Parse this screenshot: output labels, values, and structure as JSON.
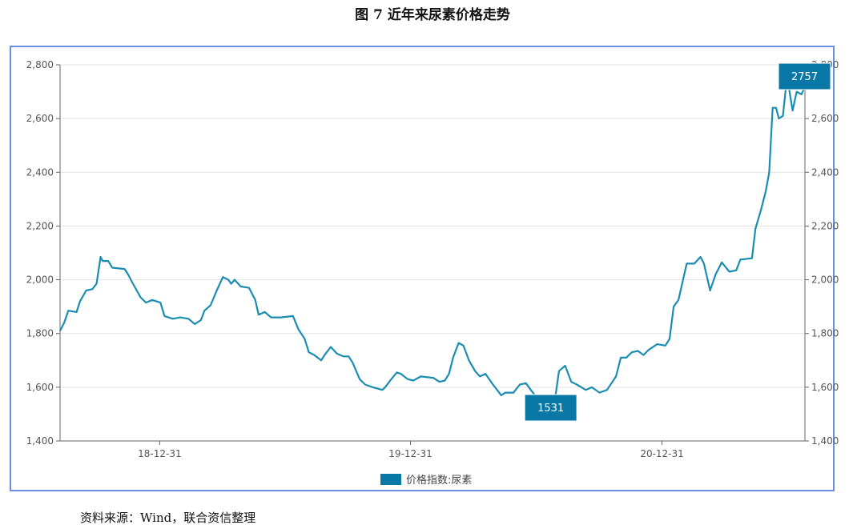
{
  "title": "图 7  近年来尿素价格走势",
  "source": "资料来源：Wind，联合资信整理",
  "chart_data": {
    "type": "line",
    "title": "图 7  近年来尿素价格走势",
    "xlabel": "",
    "ylabel": "",
    "ylim": [
      1400,
      2800
    ],
    "yticks": [
      "1,400",
      "1,600",
      "1,800",
      "2,000",
      "2,200",
      "2,400",
      "2,600",
      "2,800"
    ],
    "ytick_values": [
      1400,
      1600,
      1800,
      2000,
      2200,
      2400,
      2600,
      2800
    ],
    "xlim": [
      "2018-08-08",
      "2021-07-27"
    ],
    "xticks": [
      {
        "label": "18-12-31",
        "date": "2018-12-31"
      },
      {
        "label": "19-12-31",
        "date": "2019-12-31"
      },
      {
        "label": "20-12-31",
        "date": "2020-12-31"
      }
    ],
    "grid": true,
    "dual_y_axis": true,
    "legend_position": "bottom",
    "colors": {
      "line": "#1b8db0",
      "label_box": "#0a78a6",
      "frame": "#6a8fe0"
    },
    "annotations": [
      {
        "text": "1531",
        "date": "2020-07-11",
        "value": 1531,
        "type": "min"
      },
      {
        "text": "2757",
        "date": "2021-07-01",
        "value": 2757,
        "type": "max"
      }
    ],
    "series": [
      {
        "name": "价格指数:尿素",
        "x": [
          "2018-08-08",
          "2018-08-14",
          "2018-08-20",
          "2018-09-01",
          "2018-09-06",
          "2018-09-15",
          "2018-09-24",
          "2018-09-30",
          "2018-10-06",
          "2018-10-09",
          "2018-10-17",
          "2018-10-23",
          "2018-11-10",
          "2018-11-15",
          "2018-11-21",
          "2018-12-03",
          "2018-12-11",
          "2018-12-20",
          "2019-01-01",
          "2019-01-07",
          "2019-01-19",
          "2019-01-30",
          "2019-02-11",
          "2019-02-20",
          "2019-03-01",
          "2019-03-06",
          "2019-03-15",
          "2019-03-24",
          "2019-04-02",
          "2019-04-10",
          "2019-04-14",
          "2019-04-19",
          "2019-04-28",
          "2019-05-10",
          "2019-05-19",
          "2019-05-24",
          "2019-06-02",
          "2019-06-11",
          "2019-06-25",
          "2019-07-13",
          "2019-07-21",
          "2019-07-30",
          "2019-08-05",
          "2019-08-13",
          "2019-08-23",
          "2019-08-28",
          "2019-09-06",
          "2019-09-15",
          "2019-09-24",
          "2019-10-02",
          "2019-10-08",
          "2019-10-18",
          "2019-10-26",
          "2019-11-06",
          "2019-11-20",
          "2019-11-24",
          "2019-12-03",
          "2019-12-11",
          "2019-12-17",
          "2019-12-27",
          "2020-01-04",
          "2020-01-15",
          "2020-02-02",
          "2020-02-11",
          "2020-02-19",
          "2020-02-25",
          "2020-03-02",
          "2020-03-10",
          "2020-03-17",
          "2020-03-25",
          "2020-04-03",
          "2020-04-10",
          "2020-04-18",
          "2020-04-29",
          "2020-05-11",
          "2020-05-17",
          "2020-05-29",
          "2020-06-07",
          "2020-06-16",
          "2020-06-23",
          "2020-07-11",
          "2020-07-28",
          "2020-08-03",
          "2020-08-12",
          "2020-08-21",
          "2020-08-29",
          "2020-09-11",
          "2020-09-20",
          "2020-10-01",
          "2020-10-12",
          "2020-10-25",
          "2020-11-01",
          "2020-11-09",
          "2020-11-17",
          "2020-11-26",
          "2020-12-04",
          "2020-12-12",
          "2020-12-24",
          "2021-01-05",
          "2021-01-11",
          "2021-01-17",
          "2021-01-24",
          "2021-02-05",
          "2021-02-16",
          "2021-02-25",
          "2021-03-02",
          "2021-03-11",
          "2021-03-19",
          "2021-03-28",
          "2021-04-08",
          "2021-04-18",
          "2021-04-24",
          "2021-05-11",
          "2021-05-16",
          "2021-05-24",
          "2021-05-31",
          "2021-06-05",
          "2021-06-10",
          "2021-06-15",
          "2021-06-19",
          "2021-06-25",
          "2021-07-01",
          "2021-07-09",
          "2021-07-15",
          "2021-07-22",
          "2021-07-27"
        ],
        "values": [
          1810,
          1840,
          1885,
          1880,
          1920,
          1960,
          1965,
          1985,
          2085,
          2070,
          2070,
          2045,
          2040,
          2020,
          1990,
          1935,
          1915,
          1925,
          1915,
          1865,
          1855,
          1860,
          1855,
          1835,
          1850,
          1885,
          1905,
          1960,
          2010,
          2000,
          1985,
          2000,
          1975,
          1970,
          1925,
          1870,
          1880,
          1860,
          1860,
          1865,
          1815,
          1780,
          1730,
          1720,
          1700,
          1720,
          1750,
          1725,
          1715,
          1715,
          1690,
          1630,
          1610,
          1600,
          1590,
          1600,
          1630,
          1655,
          1650,
          1630,
          1625,
          1640,
          1635,
          1620,
          1625,
          1650,
          1710,
          1765,
          1755,
          1700,
          1660,
          1640,
          1650,
          1610,
          1570,
          1580,
          1580,
          1610,
          1615,
          1590,
          1531,
          1550,
          1660,
          1680,
          1620,
          1610,
          1590,
          1600,
          1580,
          1590,
          1640,
          1710,
          1710,
          1730,
          1735,
          1720,
          1740,
          1760,
          1755,
          1780,
          1900,
          1925,
          2060,
          2060,
          2085,
          2060,
          1960,
          2020,
          2065,
          2030,
          2035,
          2075,
          2080,
          2190,
          2260,
          2330,
          2400,
          2640,
          2640,
          2600,
          2610,
          2757,
          2630,
          2700,
          2690,
          2720
        ]
      }
    ]
  }
}
